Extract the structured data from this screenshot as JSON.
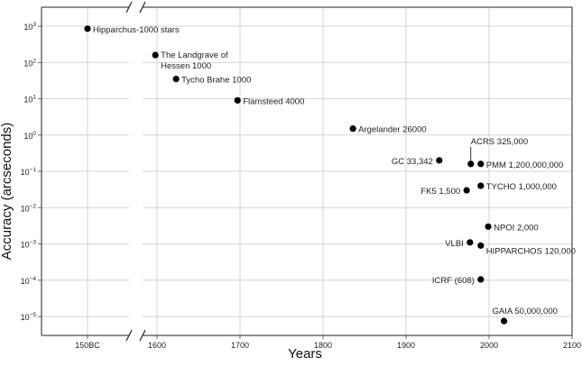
{
  "chart_data": {
    "type": "scatter",
    "title": "",
    "xlabel": "Years",
    "ylabel": "Accuracy (arcseconds)",
    "y_scale": "log",
    "ylim": [
      3e-06,
      2500
    ],
    "grid": true,
    "x_axis_break": true,
    "x_left_segment": {
      "ticks": [
        {
          "value": -150,
          "label": "150BC"
        }
      ]
    },
    "x_right_segment": {
      "ticks": [
        {
          "value": 1600,
          "label": "1600"
        },
        {
          "value": 1700,
          "label": "1700"
        },
        {
          "value": 1800,
          "label": "1800"
        },
        {
          "value": 1900,
          "label": "1900"
        },
        {
          "value": 2000,
          "label": "2000"
        },
        {
          "value": 2100,
          "label": "2100"
        }
      ]
    },
    "y_ticks": [
      {
        "value": 1000,
        "base": "10",
        "exp": "3"
      },
      {
        "value": 100,
        "base": "10",
        "exp": "2"
      },
      {
        "value": 10,
        "base": "10",
        "exp": "1"
      },
      {
        "value": 1,
        "base": "10",
        "exp": "0"
      },
      {
        "value": 0.1,
        "base": "10",
        "exp": "−1"
      },
      {
        "value": 0.01,
        "base": "10",
        "exp": "−2"
      },
      {
        "value": 0.001,
        "base": "10",
        "exp": "−3"
      },
      {
        "value": 0.0001,
        "base": "10",
        "exp": "−4"
      },
      {
        "value": 1e-05,
        "base": "10",
        "exp": "−5"
      }
    ],
    "points": [
      {
        "x": -150,
        "y": 850,
        "label": "Hipparchus-1000 stars",
        "anchor": "right",
        "lines": 1
      },
      {
        "x": 1598,
        "y": 160,
        "label": "The Landgrave of",
        "label2": "Hessen 1000",
        "anchor": "right",
        "lines": 2
      },
      {
        "x": 1623,
        "y": 35,
        "label": "Tycho Brahe 1000",
        "anchor": "right",
        "lines": 1
      },
      {
        "x": 1697,
        "y": 9,
        "label": "Flamsteed 4000",
        "anchor": "right",
        "lines": 1
      },
      {
        "x": 1836,
        "y": 1.5,
        "label": "Argelander 26000",
        "anchor": "right",
        "lines": 1
      },
      {
        "x": 1940,
        "y": 0.2,
        "label": "GC 33,342",
        "anchor": "left",
        "lines": 1
      },
      {
        "x": 1978,
        "y": 0.16,
        "label": "ACRS 325,000",
        "anchor": "callout",
        "lines": 1
      },
      {
        "x": 1990,
        "y": 0.16,
        "label": "PMM 1,200,000,000",
        "anchor": "right",
        "lines": 1
      },
      {
        "x": 1990,
        "y": 0.04,
        "label": "TYCHO 1,000,000",
        "anchor": "right",
        "lines": 1
      },
      {
        "x": 1973,
        "y": 0.03,
        "label": "FK5 1,500",
        "anchor": "left",
        "lines": 1
      },
      {
        "x": 1999,
        "y": 0.003,
        "label": "NPOI 2,000",
        "anchor": "right",
        "lines": 1
      },
      {
        "x": 1977,
        "y": 0.0011,
        "label": "VLBI",
        "anchor": "left",
        "lines": 1
      },
      {
        "x": 1990,
        "y": 0.0009,
        "label": "HIPPARCHOS 120,000",
        "anchor": "right-below",
        "lines": 1
      },
      {
        "x": 1990,
        "y": 0.000105,
        "label": "ICRF (608)",
        "anchor": "left",
        "lines": 1
      },
      {
        "x": 2018,
        "y": 7.5e-06,
        "label": "GAIA 50,000,000",
        "anchor": "above",
        "lines": 1
      }
    ]
  }
}
